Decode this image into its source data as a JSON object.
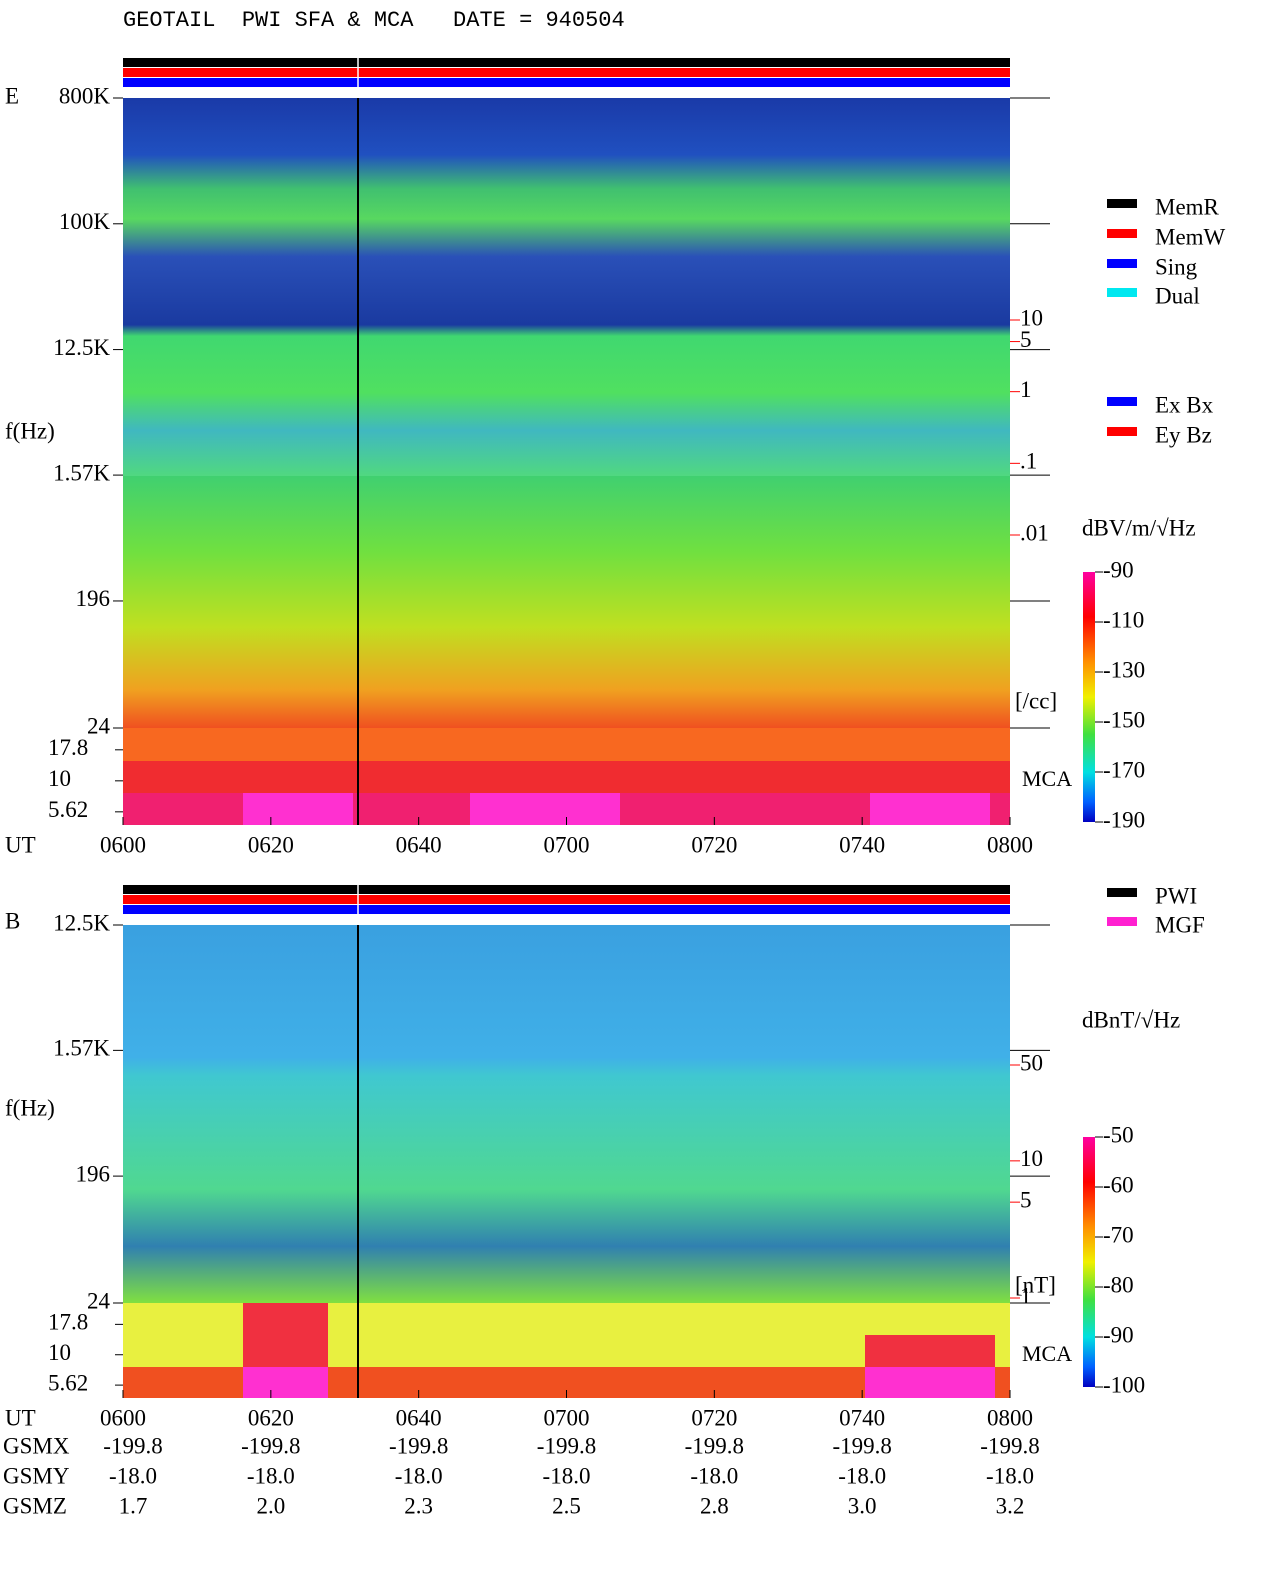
{
  "header": {
    "title": "GEOTAIL  PWI SFA & MCA   DATE = 940504"
  },
  "chart_data": [
    {
      "type": "spectrogram",
      "panel_label": "E",
      "y_label": "f(Hz)",
      "x_label": "UT",
      "log_y": true,
      "ylim": [
        24,
        800000
      ],
      "yticks": [
        {
          "value": 800000,
          "label": "800K"
        },
        {
          "value": 100000,
          "label": "100K"
        },
        {
          "value": 12500,
          "label": "12.5K"
        },
        {
          "value": 1570,
          "label": "1.57K"
        },
        196,
        24
      ],
      "mca_label": "MCA",
      "mca_ylim": [
        4.4,
        26.7
      ],
      "mca_yticks": [
        17.8,
        10,
        5.62
      ],
      "xticks": [
        "0600",
        "0620",
        "0640",
        "0700",
        "0720",
        "0740",
        "0800"
      ],
      "density_unit": "[/cc]",
      "density_lim": [
        0.01,
        10
      ],
      "density_ticks": [
        10,
        5,
        1,
        {
          "value": 0.1,
          "label": ".1"
        },
        {
          "value": 0.01,
          "label": ".01"
        }
      ],
      "colorbar": {
        "label": "dBV/m/√Hz",
        "clim": [
          -190,
          -90
        ],
        "ticks": [
          -90,
          -110,
          -130,
          -150,
          -170,
          -190
        ]
      },
      "legend": [
        {
          "name": "MemR",
          "color": "#000000"
        },
        {
          "name": "MemW",
          "color": "#ff0000"
        },
        {
          "name": "Sing",
          "color": "#0000ff"
        },
        {
          "name": "Dual",
          "color": "#00e8f0"
        },
        {
          "name": "Ex Bx",
          "color": "#0000ff"
        },
        {
          "name": "Ey Bz",
          "color": "#ff0000"
        }
      ]
    },
    {
      "type": "spectrogram",
      "panel_label": "B",
      "y_label": "f(Hz)",
      "x_label": "UT",
      "log_y": true,
      "ylim": [
        24,
        12500
      ],
      "yticks": [
        {
          "value": 12500,
          "label": "12.5K"
        },
        {
          "value": 1570,
          "label": "1.57K"
        },
        196,
        24
      ],
      "mca_label": "MCA",
      "mca_ylim": [
        4.4,
        26.7
      ],
      "mca_yticks": [
        17.8,
        10,
        5.62
      ],
      "xticks": [
        "0600",
        "0620",
        "0640",
        "0700",
        "0720",
        "0740",
        "0800"
      ],
      "density_unit": "[nT]",
      "density_lim": [
        1,
        50
      ],
      "density_ticks": [
        50,
        10,
        5,
        1
      ],
      "colorbar": {
        "label": "dBnT/√Hz",
        "clim": [
          -100,
          -50
        ],
        "ticks": [
          -50,
          -60,
          -70,
          -80,
          -90,
          -100
        ]
      },
      "legend": [
        {
          "name": "PWI",
          "color": "#000000"
        },
        {
          "name": "MGF",
          "color": "#ff20d0"
        }
      ]
    }
  ],
  "orbit": {
    "rows": [
      {
        "name": "GSMX",
        "values": [
          "-199.8",
          "-199.8",
          "-199.8",
          "-199.8",
          "-199.8",
          "-199.8",
          "-199.8"
        ]
      },
      {
        "name": "GSMY",
        "values": [
          "-18.0",
          "-18.0",
          "-18.0",
          "-18.0",
          "-18.0",
          "-18.0",
          "-18.0"
        ]
      },
      {
        "name": "GSMZ",
        "values": [
          "1.7",
          "2.0",
          "2.3",
          "2.5",
          "2.8",
          "3.0",
          "3.2"
        ]
      }
    ]
  }
}
